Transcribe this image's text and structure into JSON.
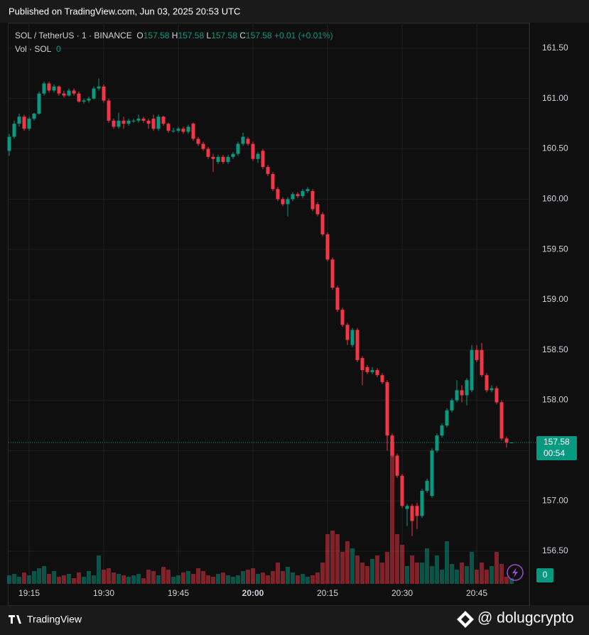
{
  "header": {
    "published": "Published on TradingView.com, Jun 03, 2025 20:53 UTC"
  },
  "legend": {
    "symbol": "SOL / TetherUS · 1 · BINANCE",
    "o_label": "O",
    "open": 157.58,
    "h_label": "H",
    "high": 157.58,
    "l_label": "L",
    "low": 157.58,
    "c_label": "C",
    "close": 157.58,
    "change": "+0.01 (+0.01%)",
    "vol_label": "Vol · SOL",
    "vol_value": 0
  },
  "chart_data": {
    "type": "candlestick",
    "x": [
      "19:11",
      "19:12",
      "19:13",
      "19:14",
      "19:15",
      "19:16",
      "19:17",
      "19:18",
      "19:19",
      "19:20",
      "19:21",
      "19:22",
      "19:23",
      "19:24",
      "19:25",
      "19:26",
      "19:27",
      "19:28",
      "19:29",
      "19:30",
      "19:31",
      "19:32",
      "19:33",
      "19:34",
      "19:35",
      "19:36",
      "19:37",
      "19:38",
      "19:39",
      "19:40",
      "19:41",
      "19:42",
      "19:43",
      "19:44",
      "19:45",
      "19:46",
      "19:47",
      "19:48",
      "19:49",
      "19:50",
      "19:51",
      "19:52",
      "19:53",
      "19:54",
      "19:55",
      "19:56",
      "19:57",
      "19:58",
      "19:59",
      "20:00",
      "20:01",
      "20:02",
      "20:03",
      "20:04",
      "20:05",
      "20:06",
      "20:07",
      "20:08",
      "20:09",
      "20:10",
      "20:11",
      "20:12",
      "20:13",
      "20:14",
      "20:15",
      "20:16",
      "20:17",
      "20:18",
      "20:19",
      "20:20",
      "20:21",
      "20:22",
      "20:23",
      "20:24",
      "20:25",
      "20:26",
      "20:27",
      "20:28",
      "20:29",
      "20:30",
      "20:31",
      "20:32",
      "20:33",
      "20:34",
      "20:35",
      "20:36",
      "20:37",
      "20:38",
      "20:39",
      "20:40",
      "20:41",
      "20:42",
      "20:43",
      "20:44",
      "20:45",
      "20:46",
      "20:47",
      "20:48",
      "20:49",
      "20:50",
      "20:51",
      "20:52"
    ],
    "ohlc": [
      [
        160.48,
        160.65,
        160.43,
        160.62
      ],
      [
        160.62,
        160.78,
        160.6,
        160.75
      ],
      [
        160.75,
        160.85,
        160.72,
        160.82
      ],
      [
        160.82,
        160.84,
        160.68,
        160.7
      ],
      [
        160.7,
        160.82,
        160.68,
        160.8
      ],
      [
        160.8,
        160.86,
        160.78,
        160.85
      ],
      [
        160.85,
        161.07,
        160.84,
        161.05
      ],
      [
        161.05,
        161.17,
        161.03,
        161.15
      ],
      [
        161.15,
        161.17,
        161.06,
        161.08
      ],
      [
        161.08,
        161.14,
        161.06,
        161.12
      ],
      [
        161.12,
        161.13,
        161.03,
        161.05
      ],
      [
        161.05,
        161.08,
        161.01,
        161.03
      ],
      [
        161.03,
        161.1,
        161.02,
        161.08
      ],
      [
        161.08,
        161.1,
        161.03,
        161.05
      ],
      [
        161.05,
        161.07,
        160.96,
        160.97
      ],
      [
        160.97,
        161.0,
        160.95,
        160.98
      ],
      [
        160.98,
        161.02,
        160.96,
        161.0
      ],
      [
        161.0,
        161.12,
        160.99,
        161.1
      ],
      [
        161.1,
        161.2,
        161.08,
        161.12
      ],
      [
        161.12,
        161.14,
        160.96,
        160.98
      ],
      [
        160.98,
        161.0,
        160.76,
        160.78
      ],
      [
        160.78,
        160.8,
        160.7,
        160.72
      ],
      [
        160.72,
        160.86,
        160.7,
        160.78
      ],
      [
        160.78,
        160.82,
        160.7,
        160.75
      ],
      [
        160.75,
        160.8,
        160.73,
        160.78
      ],
      [
        160.78,
        160.8,
        160.76,
        160.78
      ],
      [
        160.78,
        160.84,
        160.76,
        160.8
      ],
      [
        160.8,
        160.82,
        160.76,
        160.78
      ],
      [
        160.78,
        160.8,
        160.7,
        160.75
      ],
      [
        160.8,
        160.84,
        160.68,
        160.7
      ],
      [
        160.7,
        160.84,
        160.68,
        160.82
      ],
      [
        160.82,
        160.83,
        160.73,
        160.75
      ],
      [
        160.75,
        160.76,
        160.66,
        160.68
      ],
      [
        160.68,
        160.71,
        160.66,
        160.68
      ],
      [
        160.68,
        160.72,
        160.66,
        160.7
      ],
      [
        160.7,
        160.72,
        160.65,
        160.67
      ],
      [
        160.67,
        160.74,
        160.65,
        160.72
      ],
      [
        160.75,
        160.76,
        160.58,
        160.6
      ],
      [
        160.6,
        160.62,
        160.53,
        160.55
      ],
      [
        160.55,
        160.57,
        160.48,
        160.5
      ],
      [
        160.5,
        160.52,
        160.4,
        160.42
      ],
      [
        160.42,
        160.45,
        160.27,
        160.4
      ],
      [
        160.37,
        160.44,
        160.35,
        160.42
      ],
      [
        160.42,
        160.44,
        160.35,
        160.37
      ],
      [
        160.37,
        160.44,
        160.35,
        160.42
      ],
      [
        160.42,
        160.47,
        160.4,
        160.45
      ],
      [
        160.45,
        160.57,
        160.43,
        160.55
      ],
      [
        160.55,
        160.66,
        160.53,
        160.62
      ],
      [
        160.6,
        160.62,
        160.53,
        160.55
      ],
      [
        160.55,
        160.57,
        160.38,
        160.4
      ],
      [
        160.4,
        160.47,
        160.36,
        160.45
      ],
      [
        160.48,
        160.5,
        160.3,
        160.32
      ],
      [
        160.32,
        160.34,
        160.23,
        160.25
      ],
      [
        160.25,
        160.27,
        160.08,
        160.1
      ],
      [
        160.1,
        160.12,
        159.98,
        160.0
      ],
      [
        160.0,
        160.02,
        159.93,
        159.95
      ],
      [
        159.95,
        160.02,
        159.83,
        160.0
      ],
      [
        160.0,
        160.07,
        159.98,
        160.05
      ],
      [
        160.05,
        160.07,
        160.01,
        160.03
      ],
      [
        160.03,
        160.1,
        160.01,
        160.08
      ],
      [
        160.08,
        160.12,
        160.06,
        160.1
      ],
      [
        160.08,
        160.1,
        159.88,
        159.9
      ],
      [
        159.95,
        159.97,
        159.83,
        159.85
      ],
      [
        159.85,
        159.87,
        159.63,
        159.65
      ],
      [
        159.65,
        159.67,
        159.38,
        159.4
      ],
      [
        159.4,
        159.42,
        159.1,
        159.12
      ],
      [
        159.12,
        159.14,
        158.88,
        158.9
      ],
      [
        158.9,
        158.92,
        158.73,
        158.75
      ],
      [
        158.75,
        158.77,
        158.55,
        158.6
      ],
      [
        158.55,
        158.72,
        158.53,
        158.7
      ],
      [
        158.7,
        158.72,
        158.38,
        158.4
      ],
      [
        158.42,
        158.44,
        158.15,
        158.3
      ],
      [
        158.33,
        158.35,
        158.26,
        158.28
      ],
      [
        158.28,
        158.33,
        158.26,
        158.3
      ],
      [
        158.3,
        158.32,
        158.23,
        158.25
      ],
      [
        158.25,
        158.27,
        158.16,
        158.18
      ],
      [
        158.18,
        158.2,
        157.5,
        157.65
      ],
      [
        157.65,
        157.67,
        157.43,
        157.45
      ],
      [
        157.45,
        157.47,
        157.23,
        157.25
      ],
      [
        157.25,
        157.27,
        156.93,
        156.95
      ],
      [
        156.92,
        156.97,
        156.75,
        156.95
      ],
      [
        156.95,
        156.97,
        156.65,
        156.8
      ],
      [
        156.95,
        156.98,
        156.72,
        156.85
      ],
      [
        156.85,
        157.12,
        156.83,
        157.1
      ],
      [
        157.1,
        157.22,
        157.08,
        157.2
      ],
      [
        157.05,
        157.52,
        157.03,
        157.5
      ],
      [
        157.5,
        157.67,
        157.48,
        157.65
      ],
      [
        157.65,
        157.77,
        157.63,
        157.75
      ],
      [
        157.75,
        157.92,
        157.73,
        157.9
      ],
      [
        157.9,
        158.02,
        157.88,
        158.0
      ],
      [
        158.0,
        158.2,
        157.98,
        158.1
      ],
      [
        158.1,
        158.15,
        157.98,
        158.05
      ],
      [
        158.05,
        158.22,
        157.95,
        158.2
      ],
      [
        158.1,
        158.55,
        158.08,
        158.5
      ],
      [
        158.5,
        158.55,
        158.38,
        158.4
      ],
      [
        158.5,
        158.57,
        158.23,
        158.25
      ],
      [
        158.25,
        158.27,
        158.08,
        158.1
      ],
      [
        158.1,
        158.15,
        158.08,
        158.12
      ],
      [
        158.12,
        158.14,
        157.96,
        157.98
      ],
      [
        157.98,
        158.0,
        157.6,
        157.62
      ],
      [
        157.62,
        157.64,
        157.53,
        157.58
      ],
      [
        157.58,
        157.58,
        157.58,
        157.58
      ]
    ],
    "volume": [
      12,
      14,
      10,
      16,
      12,
      18,
      22,
      25,
      14,
      18,
      10,
      12,
      14,
      8,
      16,
      10,
      18,
      12,
      40,
      20,
      22,
      16,
      14,
      12,
      10,
      12,
      14,
      8,
      20,
      18,
      12,
      24,
      20,
      10,
      12,
      16,
      18,
      14,
      22,
      18,
      12,
      10,
      14,
      16,
      12,
      10,
      12,
      18,
      20,
      22,
      14,
      16,
      12,
      18,
      30,
      18,
      24,
      16,
      12,
      14,
      10,
      12,
      16,
      30,
      70,
      75,
      70,
      45,
      60,
      50,
      40,
      30,
      25,
      35,
      40,
      30,
      45,
      200,
      70,
      55,
      25,
      40,
      30,
      30,
      50,
      25,
      40,
      20,
      60,
      28,
      20,
      30,
      25,
      45,
      20,
      30,
      20,
      25,
      45,
      28,
      10,
      8
    ],
    "up_color": "#089981",
    "down_color": "#f23645",
    "ylim": [
      156.175,
      161.754
    ],
    "yticks": [
      {
        "value": 156.5,
        "label": "156.50"
      },
      {
        "value": 157,
        "label": "157.00"
      },
      {
        "value": 157.5,
        "label": "157.50"
      },
      {
        "value": 158,
        "label": "158.00"
      },
      {
        "value": 158.5,
        "label": "158.50"
      },
      {
        "value": 159,
        "label": "159.00"
      },
      {
        "value": 159.5,
        "label": "159.50"
      },
      {
        "value": 160,
        "label": "160.00"
      },
      {
        "value": 160.5,
        "label": "160.50"
      },
      {
        "value": 161,
        "label": "161.00"
      },
      {
        "value": 161.5,
        "label": "161.50"
      }
    ],
    "xticks": [
      "19:15",
      "19:30",
      "19:45",
      "20:00",
      "20:15",
      "20:30",
      "20:45"
    ],
    "vlim": [
      0,
      200
    ],
    "last_price": 157.58,
    "last_label": "157.58",
    "countdown": "00:54",
    "volume_axis_label": 0,
    "grid": true
  },
  "footer": {
    "brand": "TradingView",
    "watermark": "@ dolugcrypto"
  }
}
